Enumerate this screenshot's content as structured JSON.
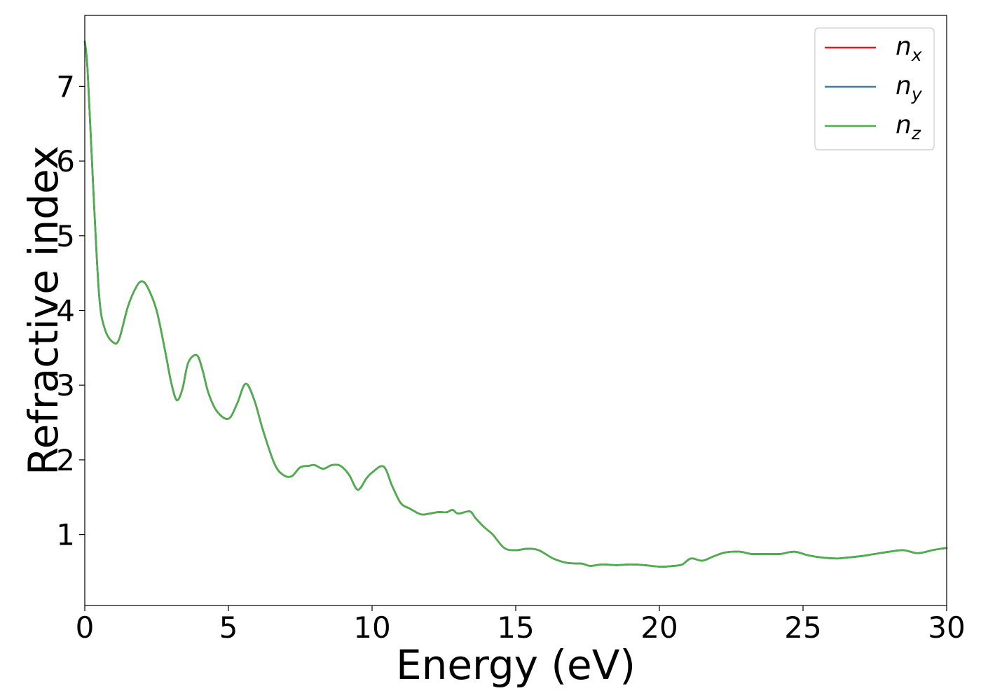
{
  "chart_data": {
    "type": "line",
    "xlabel": "Energy (eV)",
    "ylabel": "Refractive index",
    "xlim": [
      0,
      30
    ],
    "ylim": [
      0.05,
      7.95
    ],
    "xticks": [
      0,
      5,
      10,
      15,
      20,
      25,
      30
    ],
    "yticks": [
      1,
      2,
      3,
      4,
      5,
      6,
      7
    ],
    "grid": false,
    "legend_position": "top-right",
    "x": [
      0,
      0.1,
      0.3,
      0.5,
      0.7,
      1.0,
      1.2,
      1.5,
      1.8,
      2.0,
      2.2,
      2.5,
      2.8,
      3.0,
      3.2,
      3.4,
      3.6,
      3.9,
      4.1,
      4.3,
      4.6,
      5.0,
      5.3,
      5.6,
      5.9,
      6.2,
      6.6,
      6.9,
      7.2,
      7.5,
      7.8,
      8.0,
      8.3,
      8.6,
      8.9,
      9.2,
      9.5,
      9.8,
      10.0,
      10.4,
      10.7,
      11.0,
      11.3,
      11.7,
      12.0,
      12.3,
      12.6,
      12.8,
      13.0,
      13.4,
      13.6,
      13.9,
      14.2,
      14.6,
      15.0,
      15.4,
      15.8,
      16.3,
      16.8,
      17.3,
      17.6,
      18.0,
      18.5,
      19.0,
      19.5,
      20.0,
      20.5,
      20.8,
      21.1,
      21.5,
      21.9,
      22.3,
      22.8,
      23.2,
      23.7,
      24.2,
      24.7,
      25.2,
      25.7,
      26.2,
      26.5,
      27.0,
      27.5,
      28.0,
      28.5,
      29.0,
      29.5,
      29.8,
      30.0
    ],
    "series": [
      {
        "name": "n_x",
        "color": "#e41a1c",
        "values": [
          7.6,
          7.2,
          5.6,
          4.2,
          3.75,
          3.57,
          3.62,
          4.05,
          4.32,
          4.39,
          4.3,
          4.0,
          3.45,
          3.05,
          2.8,
          2.95,
          3.3,
          3.4,
          3.2,
          2.9,
          2.65,
          2.55,
          2.75,
          3.02,
          2.8,
          2.4,
          1.95,
          1.8,
          1.78,
          1.9,
          1.92,
          1.93,
          1.88,
          1.93,
          1.92,
          1.8,
          1.6,
          1.75,
          1.83,
          1.91,
          1.65,
          1.42,
          1.35,
          1.27,
          1.28,
          1.3,
          1.3,
          1.33,
          1.28,
          1.31,
          1.22,
          1.1,
          1.0,
          0.82,
          0.79,
          0.81,
          0.79,
          0.68,
          0.62,
          0.61,
          0.58,
          0.6,
          0.59,
          0.6,
          0.59,
          0.57,
          0.58,
          0.6,
          0.68,
          0.65,
          0.71,
          0.76,
          0.77,
          0.74,
          0.74,
          0.74,
          0.77,
          0.72,
          0.69,
          0.68,
          0.69,
          0.71,
          0.74,
          0.77,
          0.79,
          0.75,
          0.79,
          0.81,
          0.82
        ]
      },
      {
        "name": "n_y",
        "color": "#377eb8",
        "values": [
          7.6,
          7.2,
          5.6,
          4.2,
          3.75,
          3.57,
          3.62,
          4.05,
          4.32,
          4.39,
          4.3,
          4.0,
          3.45,
          3.05,
          2.8,
          2.95,
          3.3,
          3.4,
          3.2,
          2.9,
          2.65,
          2.55,
          2.75,
          3.02,
          2.8,
          2.4,
          1.95,
          1.8,
          1.78,
          1.9,
          1.92,
          1.93,
          1.88,
          1.93,
          1.92,
          1.8,
          1.6,
          1.75,
          1.83,
          1.91,
          1.65,
          1.42,
          1.35,
          1.27,
          1.28,
          1.3,
          1.3,
          1.33,
          1.28,
          1.31,
          1.22,
          1.1,
          1.0,
          0.82,
          0.79,
          0.81,
          0.79,
          0.68,
          0.62,
          0.61,
          0.58,
          0.6,
          0.59,
          0.6,
          0.59,
          0.57,
          0.58,
          0.6,
          0.68,
          0.65,
          0.71,
          0.76,
          0.77,
          0.74,
          0.74,
          0.74,
          0.77,
          0.72,
          0.69,
          0.68,
          0.69,
          0.71,
          0.74,
          0.77,
          0.79,
          0.75,
          0.79,
          0.81,
          0.82
        ]
      },
      {
        "name": "n_z",
        "color": "#4daf4a",
        "values": [
          7.6,
          7.2,
          5.6,
          4.2,
          3.75,
          3.57,
          3.62,
          4.05,
          4.32,
          4.39,
          4.3,
          4.0,
          3.45,
          3.05,
          2.8,
          2.95,
          3.3,
          3.4,
          3.2,
          2.9,
          2.65,
          2.55,
          2.75,
          3.02,
          2.8,
          2.4,
          1.95,
          1.8,
          1.78,
          1.9,
          1.92,
          1.93,
          1.88,
          1.93,
          1.92,
          1.8,
          1.6,
          1.75,
          1.83,
          1.91,
          1.65,
          1.42,
          1.35,
          1.27,
          1.28,
          1.3,
          1.3,
          1.33,
          1.28,
          1.31,
          1.22,
          1.1,
          1.0,
          0.82,
          0.79,
          0.81,
          0.79,
          0.68,
          0.62,
          0.61,
          0.58,
          0.6,
          0.59,
          0.6,
          0.59,
          0.57,
          0.58,
          0.6,
          0.68,
          0.65,
          0.71,
          0.76,
          0.77,
          0.74,
          0.74,
          0.74,
          0.77,
          0.72,
          0.69,
          0.68,
          0.69,
          0.71,
          0.74,
          0.77,
          0.79,
          0.75,
          0.79,
          0.81,
          0.82
        ]
      }
    ],
    "legend": [
      {
        "base": "n",
        "sub": "x",
        "color": "#e41a1c"
      },
      {
        "base": "n",
        "sub": "y",
        "color": "#377eb8"
      },
      {
        "base": "n",
        "sub": "z",
        "color": "#4daf4a"
      }
    ]
  }
}
